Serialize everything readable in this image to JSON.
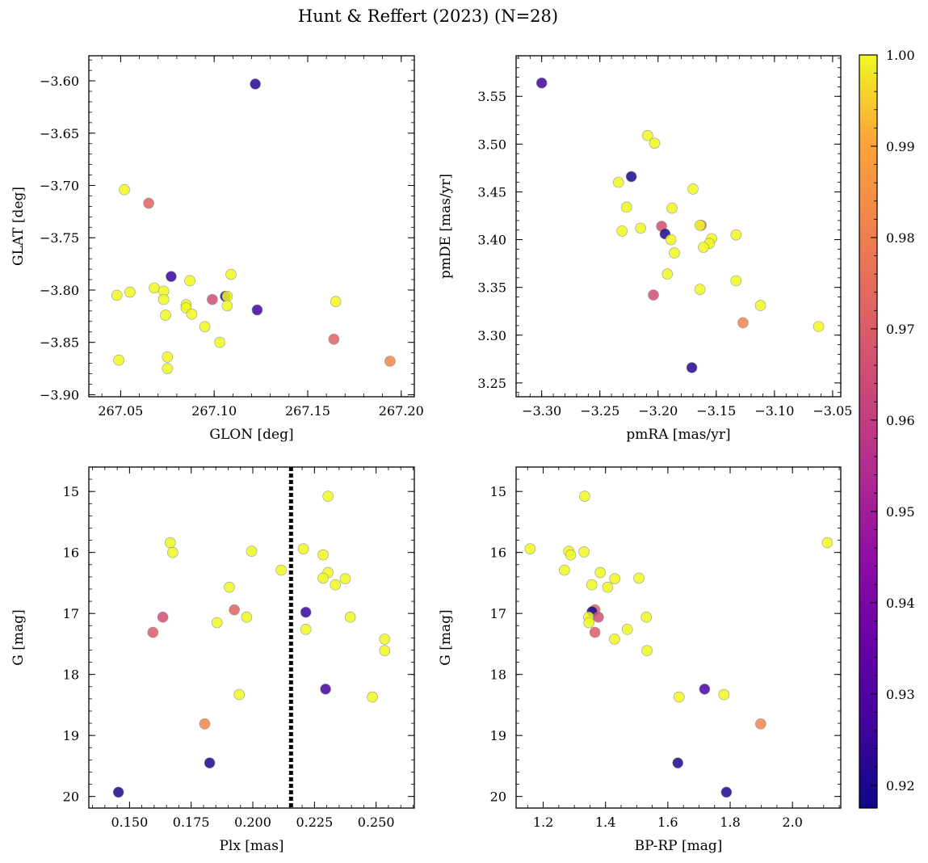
{
  "chart_data": {
    "title": "Hunt & Reffert (2023) (N=28)",
    "type": "scatter",
    "colorbar": {
      "range": [
        0.9175,
        1.0
      ],
      "ticks": [
        0.92,
        0.93,
        0.94,
        0.95,
        0.96,
        0.97,
        0.98,
        0.99,
        1.0
      ],
      "tick_labels": [
        "0.92",
        "0.93",
        "0.94",
        "0.95",
        "0.96",
        "0.97",
        "0.98",
        "0.99",
        "1.00"
      ],
      "colormap": "plasma"
    },
    "panels": [
      {
        "id": "glon-glat",
        "xlabel": "GLON [deg]",
        "ylabel": "GLAT [deg]",
        "xlim": [
          267.033,
          267.207
        ],
        "ylim": [
          -3.902,
          -3.576
        ],
        "invert_y": false,
        "xticks": [
          267.05,
          267.1,
          267.15,
          267.2
        ],
        "xtick_labels": [
          "267.05",
          "267.10",
          "267.15",
          "267.20"
        ],
        "yticks": [
          -3.6,
          -3.65,
          -3.7,
          -3.75,
          -3.8,
          -3.85,
          -3.9
        ],
        "ytick_labels": [
          "−3.60",
          "−3.65",
          "−3.70",
          "−3.75",
          "−3.80",
          "−3.85",
          "−3.90"
        ],
        "minor_x": 0.01,
        "minor_y": 0.01,
        "points": [
          {
            "x": 267.052,
            "y": -3.704,
            "p": 1.0
          },
          {
            "x": 267.065,
            "y": -3.717,
            "p": 0.972
          },
          {
            "x": 267.122,
            "y": -3.603,
            "p": 0.922
          },
          {
            "x": 267.077,
            "y": -3.787,
            "p": 0.925
          },
          {
            "x": 267.109,
            "y": -3.785,
            "p": 1.0
          },
          {
            "x": 267.087,
            "y": -3.791,
            "p": 1.0
          },
          {
            "x": 267.068,
            "y": -3.798,
            "p": 1.0
          },
          {
            "x": 267.055,
            "y": -3.802,
            "p": 1.0
          },
          {
            "x": 267.048,
            "y": -3.805,
            "p": 1.0
          },
          {
            "x": 267.073,
            "y": -3.801,
            "p": 1.0
          },
          {
            "x": 267.073,
            "y": -3.809,
            "p": 1.0
          },
          {
            "x": 267.106,
            "y": -3.806,
            "p": 0.92
          },
          {
            "x": 267.107,
            "y": -3.806,
            "p": 1.0
          },
          {
            "x": 267.099,
            "y": -3.809,
            "p": 0.966
          },
          {
            "x": 267.085,
            "y": -3.814,
            "p": 1.0
          },
          {
            "x": 267.085,
            "y": -3.817,
            "p": 1.0
          },
          {
            "x": 267.107,
            "y": -3.815,
            "p": 1.0
          },
          {
            "x": 267.123,
            "y": -3.819,
            "p": 0.927
          },
          {
            "x": 267.165,
            "y": -3.811,
            "p": 1.0
          },
          {
            "x": 267.074,
            "y": -3.824,
            "p": 1.0
          },
          {
            "x": 267.088,
            "y": -3.823,
            "p": 1.0
          },
          {
            "x": 267.095,
            "y": -3.835,
            "p": 1.0
          },
          {
            "x": 267.103,
            "y": -3.85,
            "p": 1.0
          },
          {
            "x": 267.164,
            "y": -3.847,
            "p": 0.972
          },
          {
            "x": 267.049,
            "y": -3.867,
            "p": 1.0
          },
          {
            "x": 267.075,
            "y": -3.864,
            "p": 1.0
          },
          {
            "x": 267.194,
            "y": -3.868,
            "p": 0.982
          },
          {
            "x": 267.075,
            "y": -3.875,
            "p": 1.0
          }
        ]
      },
      {
        "id": "pmra-pmde",
        "xlabel": "pmRA [mas/yr]",
        "ylabel": "pmDE [mas/yr]",
        "xlim": [
          -3.322,
          -3.043
        ],
        "ylim": [
          3.2355,
          3.5925
        ],
        "invert_y": false,
        "xticks": [
          -3.3,
          -3.25,
          -3.2,
          -3.15,
          -3.1,
          -3.05
        ],
        "xtick_labels": [
          "−3.30",
          "−3.25",
          "−3.20",
          "−3.15",
          "−3.10",
          "−3.05"
        ],
        "yticks": [
          3.25,
          3.3,
          3.35,
          3.4,
          3.45,
          3.5,
          3.55
        ],
        "ytick_labels": [
          "3.25",
          "3.30",
          "3.35",
          "3.40",
          "3.45",
          "3.50",
          "3.55"
        ],
        "minor_x": 0.01,
        "minor_y": 0.01,
        "points": [
          {
            "x": -3.3,
            "y": 3.564,
            "p": 0.927
          },
          {
            "x": -3.209,
            "y": 3.509,
            "p": 1.0
          },
          {
            "x": -3.203,
            "y": 3.501,
            "p": 1.0
          },
          {
            "x": -3.223,
            "y": 3.466,
            "p": 0.92
          },
          {
            "x": -3.234,
            "y": 3.46,
            "p": 1.0
          },
          {
            "x": -3.17,
            "y": 3.453,
            "p": 1.0
          },
          {
            "x": -3.227,
            "y": 3.434,
            "p": 1.0
          },
          {
            "x": -3.188,
            "y": 3.433,
            "p": 1.0
          },
          {
            "x": -3.163,
            "y": 3.415,
            "p": 0.972
          },
          {
            "x": -3.164,
            "y": 3.415,
            "p": 1.0
          },
          {
            "x": -3.197,
            "y": 3.414,
            "p": 0.966
          },
          {
            "x": -3.215,
            "y": 3.412,
            "p": 1.0
          },
          {
            "x": -3.231,
            "y": 3.409,
            "p": 1.0
          },
          {
            "x": -3.194,
            "y": 3.406,
            "p": 0.92
          },
          {
            "x": -3.133,
            "y": 3.405,
            "p": 1.0
          },
          {
            "x": -3.154,
            "y": 3.401,
            "p": 1.0
          },
          {
            "x": -3.189,
            "y": 3.4,
            "p": 1.0
          },
          {
            "x": -3.156,
            "y": 3.396,
            "p": 1.0
          },
          {
            "x": -3.161,
            "y": 3.392,
            "p": 1.0
          },
          {
            "x": -3.186,
            "y": 3.386,
            "p": 1.0
          },
          {
            "x": -3.192,
            "y": 3.364,
            "p": 1.0
          },
          {
            "x": -3.133,
            "y": 3.357,
            "p": 1.0
          },
          {
            "x": -3.164,
            "y": 3.348,
            "p": 1.0
          },
          {
            "x": -3.204,
            "y": 3.342,
            "p": 0.966
          },
          {
            "x": -3.112,
            "y": 3.331,
            "p": 1.0
          },
          {
            "x": -3.127,
            "y": 3.313,
            "p": 0.982
          },
          {
            "x": -3.062,
            "y": 3.309,
            "p": 1.0
          },
          {
            "x": -3.171,
            "y": 3.266,
            "p": 0.922
          }
        ]
      },
      {
        "id": "plx-g",
        "xlabel": "Plx [mas]",
        "ylabel": "G [mag]",
        "xlim": [
          0.1335,
          0.2655
        ],
        "ylim": [
          20.19,
          14.6
        ],
        "invert_y": true,
        "xticks": [
          0.15,
          0.175,
          0.2,
          0.225,
          0.25
        ],
        "xtick_labels": [
          "0.150",
          "0.175",
          "0.200",
          "0.225",
          "0.250"
        ],
        "yticks": [
          15,
          16,
          17,
          18,
          19,
          20
        ],
        "ytick_labels": [
          "15",
          "16",
          "17",
          "18",
          "19",
          "20"
        ],
        "minor_x": 0.005,
        "minor_y": 0.2,
        "vline": {
          "x": 0.2155,
          "style": "dotted"
        },
        "points": [
          {
            "x": 0.2305,
            "y": 15.08,
            "p": 1.0
          },
          {
            "x": 0.1665,
            "y": 15.84,
            "p": 1.0
          },
          {
            "x": 0.2205,
            "y": 15.94,
            "p": 1.0
          },
          {
            "x": 0.1675,
            "y": 16.0,
            "p": 1.0
          },
          {
            "x": 0.1995,
            "y": 15.98,
            "p": 1.0
          },
          {
            "x": 0.2285,
            "y": 16.04,
            "p": 1.0
          },
          {
            "x": 0.2115,
            "y": 16.29,
            "p": 1.0
          },
          {
            "x": 0.2305,
            "y": 16.33,
            "p": 1.0
          },
          {
            "x": 0.2375,
            "y": 16.43,
            "p": 1.0
          },
          {
            "x": 0.2285,
            "y": 16.42,
            "p": 1.0
          },
          {
            "x": 0.2335,
            "y": 16.53,
            "p": 1.0
          },
          {
            "x": 0.1905,
            "y": 16.57,
            "p": 1.0
          },
          {
            "x": 0.1925,
            "y": 16.94,
            "p": 0.972
          },
          {
            "x": 0.2215,
            "y": 16.98,
            "p": 0.925
          },
          {
            "x": 0.1975,
            "y": 17.06,
            "p": 1.0
          },
          {
            "x": 0.1635,
            "y": 17.06,
            "p": 0.966
          },
          {
            "x": 0.2395,
            "y": 17.06,
            "p": 1.0
          },
          {
            "x": 0.1855,
            "y": 17.15,
            "p": 1.0
          },
          {
            "x": 0.2215,
            "y": 17.26,
            "p": 1.0
          },
          {
            "x": 0.1595,
            "y": 17.31,
            "p": 0.97
          },
          {
            "x": 0.2535,
            "y": 17.42,
            "p": 1.0
          },
          {
            "x": 0.2535,
            "y": 17.61,
            "p": 1.0
          },
          {
            "x": 0.2295,
            "y": 18.24,
            "p": 0.928
          },
          {
            "x": 0.1945,
            "y": 18.33,
            "p": 1.0
          },
          {
            "x": 0.2485,
            "y": 18.37,
            "p": 1.0
          },
          {
            "x": 0.1805,
            "y": 18.81,
            "p": 0.982
          },
          {
            "x": 0.1825,
            "y": 19.45,
            "p": 0.92
          },
          {
            "x": 0.1455,
            "y": 19.93,
            "p": 0.92
          }
        ]
      },
      {
        "id": "bprp-g",
        "xlabel": "BP-RP [mag]",
        "ylabel": "G [mag]",
        "xlim": [
          1.113,
          2.155
        ],
        "ylim": [
          20.19,
          14.6
        ],
        "invert_y": true,
        "xticks": [
          1.2,
          1.4,
          1.6,
          1.8,
          2.0
        ],
        "xtick_labels": [
          "1.2",
          "1.4",
          "1.6",
          "1.8",
          "2.0"
        ],
        "yticks": [
          15,
          16,
          17,
          18,
          19,
          20
        ],
        "ytick_labels": [
          "15",
          "16",
          "17",
          "18",
          "19",
          "20"
        ],
        "minor_x": 0.05,
        "minor_y": 0.2,
        "points": [
          {
            "x": 1.333,
            "y": 15.08,
            "p": 1.0
          },
          {
            "x": 2.112,
            "y": 15.84,
            "p": 1.0
          },
          {
            "x": 1.158,
            "y": 15.94,
            "p": 1.0
          },
          {
            "x": 1.282,
            "y": 15.98,
            "p": 1.0
          },
          {
            "x": 1.331,
            "y": 15.99,
            "p": 1.0
          },
          {
            "x": 1.288,
            "y": 16.04,
            "p": 1.0
          },
          {
            "x": 1.268,
            "y": 16.29,
            "p": 1.0
          },
          {
            "x": 1.383,
            "y": 16.33,
            "p": 1.0
          },
          {
            "x": 1.507,
            "y": 16.42,
            "p": 1.0
          },
          {
            "x": 1.43,
            "y": 16.43,
            "p": 1.0
          },
          {
            "x": 1.356,
            "y": 16.53,
            "p": 1.0
          },
          {
            "x": 1.407,
            "y": 16.57,
            "p": 1.0
          },
          {
            "x": 1.366,
            "y": 16.94,
            "p": 0.972
          },
          {
            "x": 1.357,
            "y": 16.97,
            "p": 0.92
          },
          {
            "x": 1.346,
            "y": 17.06,
            "p": 1.0
          },
          {
            "x": 1.377,
            "y": 17.06,
            "p": 0.966
          },
          {
            "x": 1.531,
            "y": 17.06,
            "p": 1.0
          },
          {
            "x": 1.347,
            "y": 17.15,
            "p": 1.0
          },
          {
            "x": 1.47,
            "y": 17.26,
            "p": 1.0
          },
          {
            "x": 1.366,
            "y": 17.31,
            "p": 0.97
          },
          {
            "x": 1.429,
            "y": 17.42,
            "p": 1.0
          },
          {
            "x": 1.533,
            "y": 17.61,
            "p": 1.0
          },
          {
            "x": 1.718,
            "y": 18.24,
            "p": 0.928
          },
          {
            "x": 1.78,
            "y": 18.33,
            "p": 1.0
          },
          {
            "x": 1.636,
            "y": 18.37,
            "p": 1.0
          },
          {
            "x": 1.898,
            "y": 18.81,
            "p": 0.982
          },
          {
            "x": 1.632,
            "y": 19.45,
            "p": 0.92
          },
          {
            "x": 1.788,
            "y": 19.93,
            "p": 0.92
          }
        ]
      }
    ]
  }
}
